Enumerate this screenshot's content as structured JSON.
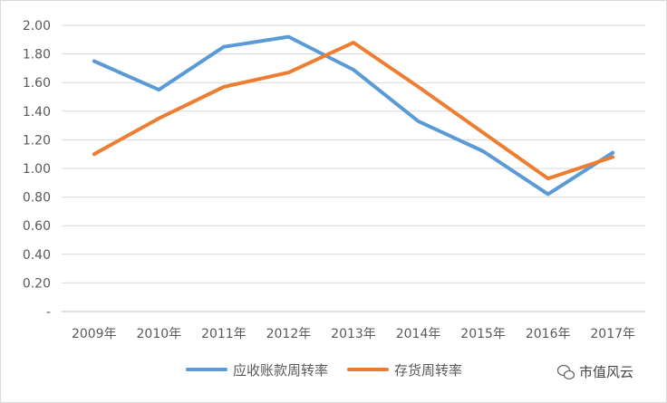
{
  "chart_data": {
    "type": "line",
    "title": "",
    "xlabel": "",
    "ylabel": "",
    "categories": [
      "2009年",
      "2010年",
      "2011年",
      "2012年",
      "2013年",
      "2014年",
      "2015年",
      "2016年",
      "2017年"
    ],
    "ylim": [
      0,
      2.0
    ],
    "ytick_labels": [
      "-",
      "0.20",
      "0.40",
      "0.60",
      "0.80",
      "1.00",
      "1.20",
      "1.40",
      "1.60",
      "1.80",
      "2.00"
    ],
    "grid": true,
    "legend_position": "bottom",
    "series": [
      {
        "name": "应收账款周转率",
        "color": "#5b9bd5",
        "values": [
          1.75,
          1.55,
          1.85,
          1.92,
          1.69,
          1.33,
          1.12,
          0.82,
          1.11
        ]
      },
      {
        "name": "存货周转率",
        "color": "#ed7d31",
        "values": [
          1.1,
          1.35,
          1.57,
          1.67,
          1.88,
          1.57,
          1.25,
          0.93,
          1.08
        ]
      }
    ]
  },
  "watermark": {
    "text": "市值风云",
    "icon": "wechat-icon"
  }
}
